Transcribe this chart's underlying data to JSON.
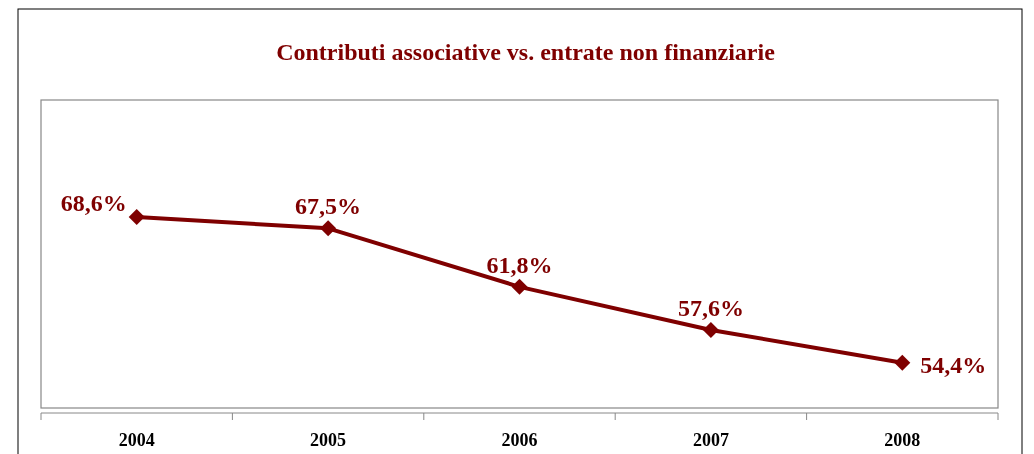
{
  "chart_data": {
    "type": "line",
    "title": "Contributi associative vs. entrate non finanziarie",
    "categories": [
      "2004",
      "2005",
      "2006",
      "2007",
      "2008"
    ],
    "series": [
      {
        "color": "#7f0000",
        "values": [
          68.6,
          67.5,
          61.8,
          57.6,
          54.4
        ],
        "value_labels": [
          "68,6%",
          "67,5%",
          "61,8%",
          "57,6%",
          "54,4%"
        ]
      }
    ],
    "ylim": [
      50,
      80
    ],
    "marker": "diamond",
    "line_style": "solid",
    "tick_labels": "x"
  }
}
